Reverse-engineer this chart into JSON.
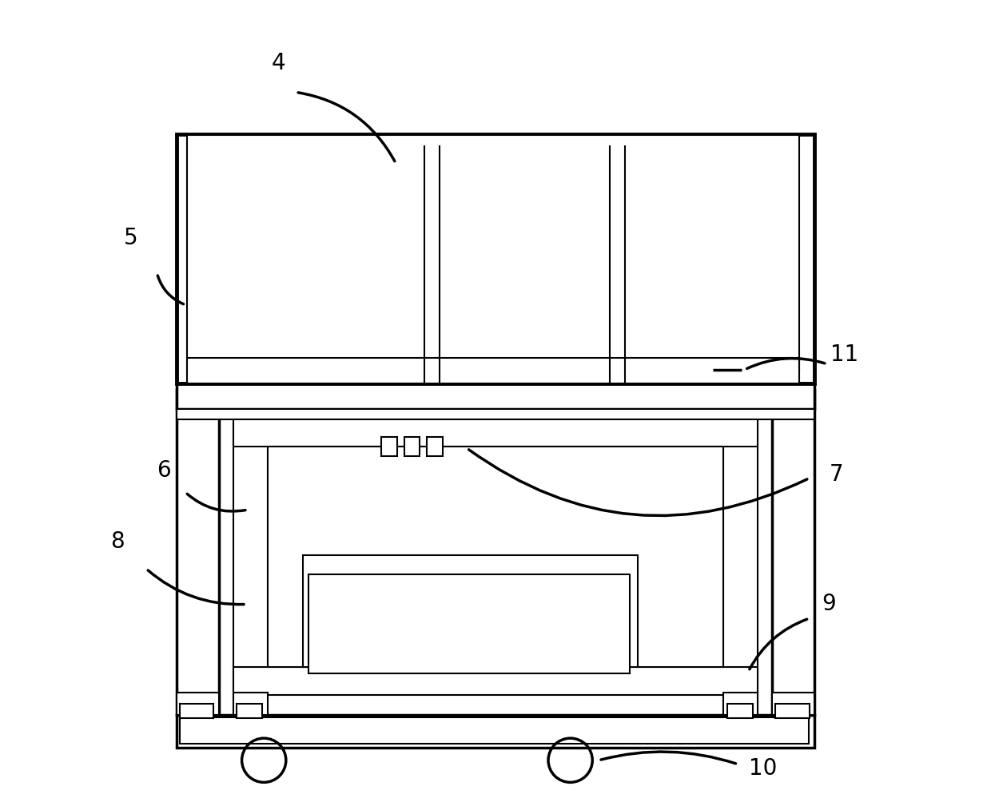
{
  "bg_color": "#ffffff",
  "lc": "#000000",
  "lw": 1.5,
  "fig_width": 12.4,
  "fig_height": 10.09,
  "label_fontsize": 20
}
